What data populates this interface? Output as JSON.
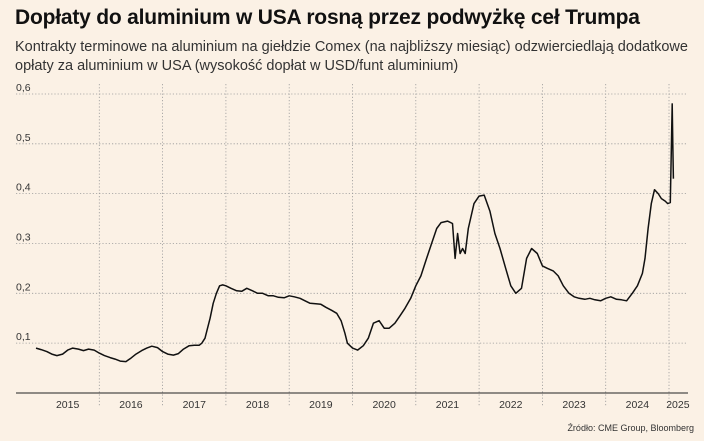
{
  "header": {
    "title": "Dopłaty do aluminium w USA rosną przez podwyżkę ceł Trumpa",
    "subtitle": "Kontrakty terminowe na aluminium na giełdzie Comex (na najbliższy miesiąc) odzwierciedlają dodatkowe opłaty za aluminium w USA (wysokość dopłat w USD/funt aluminium)"
  },
  "footer": {
    "source": "Źródło: CME Group, Bloomberg"
  },
  "colors": {
    "background": "#fbf1e5",
    "line": "#111111",
    "grid": "#9a9a9a"
  },
  "chart_data": {
    "type": "line",
    "title": "Dopłaty do aluminium w USA rosną przez podwyżkę ceł Trumpa",
    "xlabel": "",
    "ylabel": "",
    "ylim": [
      0,
      0.62
    ],
    "xlim": [
      2015.0,
      2025.3
    ],
    "grid": "horizontal dotted",
    "legend": "none",
    "y_ticks": [
      {
        "value": 0.1,
        "label": "0,1"
      },
      {
        "value": 0.2,
        "label": "0,2"
      },
      {
        "value": 0.3,
        "label": "0,3"
      },
      {
        "value": 0.4,
        "label": "0,4"
      },
      {
        "value": 0.5,
        "label": "0,5"
      },
      {
        "value": 0.6,
        "label": "0,6"
      }
    ],
    "x_ticks": [
      "2015",
      "2016",
      "2017",
      "2018",
      "2019",
      "2020",
      "2021",
      "2022",
      "2023",
      "2024",
      "2025"
    ],
    "series": [
      {
        "points": [
          [
            2015.0,
            0.09
          ],
          [
            2015.08,
            0.087
          ],
          [
            2015.17,
            0.083
          ],
          [
            2015.25,
            0.078
          ],
          [
            2015.33,
            0.075
          ],
          [
            2015.42,
            0.078
          ],
          [
            2015.5,
            0.086
          ],
          [
            2015.58,
            0.09
          ],
          [
            2015.67,
            0.088
          ],
          [
            2015.75,
            0.085
          ],
          [
            2015.83,
            0.088
          ],
          [
            2015.92,
            0.086
          ],
          [
            2016.0,
            0.08
          ],
          [
            2016.08,
            0.075
          ],
          [
            2016.17,
            0.071
          ],
          [
            2016.25,
            0.068
          ],
          [
            2016.33,
            0.064
          ],
          [
            2016.42,
            0.063
          ],
          [
            2016.5,
            0.07
          ],
          [
            2016.58,
            0.078
          ],
          [
            2016.67,
            0.085
          ],
          [
            2016.75,
            0.09
          ],
          [
            2016.83,
            0.094
          ],
          [
            2016.92,
            0.091
          ],
          [
            2017.0,
            0.083
          ],
          [
            2017.08,
            0.078
          ],
          [
            2017.17,
            0.076
          ],
          [
            2017.25,
            0.079
          ],
          [
            2017.33,
            0.088
          ],
          [
            2017.42,
            0.095
          ],
          [
            2017.5,
            0.096
          ],
          [
            2017.58,
            0.096
          ],
          [
            2017.62,
            0.1
          ],
          [
            2017.67,
            0.11
          ],
          [
            2017.7,
            0.125
          ],
          [
            2017.75,
            0.15
          ],
          [
            2017.8,
            0.18
          ],
          [
            2017.85,
            0.2
          ],
          [
            2017.9,
            0.215
          ],
          [
            2017.95,
            0.217
          ],
          [
            2018.0,
            0.215
          ],
          [
            2018.08,
            0.21
          ],
          [
            2018.17,
            0.205
          ],
          [
            2018.25,
            0.204
          ],
          [
            2018.33,
            0.21
          ],
          [
            2018.42,
            0.205
          ],
          [
            2018.5,
            0.2
          ],
          [
            2018.58,
            0.2
          ],
          [
            2018.67,
            0.195
          ],
          [
            2018.75,
            0.195
          ],
          [
            2018.83,
            0.192
          ],
          [
            2018.92,
            0.191
          ],
          [
            2019.0,
            0.195
          ],
          [
            2019.08,
            0.193
          ],
          [
            2019.17,
            0.19
          ],
          [
            2019.25,
            0.185
          ],
          [
            2019.33,
            0.18
          ],
          [
            2019.42,
            0.179
          ],
          [
            2019.5,
            0.178
          ],
          [
            2019.58,
            0.172
          ],
          [
            2019.67,
            0.166
          ],
          [
            2019.75,
            0.16
          ],
          [
            2019.82,
            0.145
          ],
          [
            2019.88,
            0.12
          ],
          [
            2019.92,
            0.1
          ],
          [
            2020.0,
            0.09
          ],
          [
            2020.08,
            0.086
          ],
          [
            2020.17,
            0.095
          ],
          [
            2020.25,
            0.11
          ],
          [
            2020.33,
            0.14
          ],
          [
            2020.42,
            0.145
          ],
          [
            2020.5,
            0.13
          ],
          [
            2020.58,
            0.13
          ],
          [
            2020.67,
            0.14
          ],
          [
            2020.75,
            0.155
          ],
          [
            2020.83,
            0.17
          ],
          [
            2020.92,
            0.19
          ],
          [
            2021.0,
            0.215
          ],
          [
            2021.08,
            0.235
          ],
          [
            2021.17,
            0.27
          ],
          [
            2021.25,
            0.3
          ],
          [
            2021.33,
            0.33
          ],
          [
            2021.4,
            0.342
          ],
          [
            2021.5,
            0.345
          ],
          [
            2021.58,
            0.34
          ],
          [
            2021.62,
            0.27
          ],
          [
            2021.66,
            0.32
          ],
          [
            2021.7,
            0.28
          ],
          [
            2021.74,
            0.29
          ],
          [
            2021.78,
            0.28
          ],
          [
            2021.83,
            0.33
          ],
          [
            2021.92,
            0.38
          ],
          [
            2022.0,
            0.395
          ],
          [
            2022.08,
            0.397
          ],
          [
            2022.17,
            0.365
          ],
          [
            2022.25,
            0.32
          ],
          [
            2022.33,
            0.29
          ],
          [
            2022.42,
            0.25
          ],
          [
            2022.5,
            0.215
          ],
          [
            2022.58,
            0.2
          ],
          [
            2022.67,
            0.21
          ],
          [
            2022.75,
            0.27
          ],
          [
            2022.83,
            0.29
          ],
          [
            2022.92,
            0.28
          ],
          [
            2023.0,
            0.255
          ],
          [
            2023.08,
            0.25
          ],
          [
            2023.17,
            0.245
          ],
          [
            2023.25,
            0.235
          ],
          [
            2023.33,
            0.215
          ],
          [
            2023.42,
            0.2
          ],
          [
            2023.5,
            0.193
          ],
          [
            2023.58,
            0.19
          ],
          [
            2023.67,
            0.188
          ],
          [
            2023.75,
            0.19
          ],
          [
            2023.83,
            0.187
          ],
          [
            2023.92,
            0.185
          ],
          [
            2024.0,
            0.19
          ],
          [
            2024.08,
            0.193
          ],
          [
            2024.17,
            0.188
          ],
          [
            2024.25,
            0.187
          ],
          [
            2024.33,
            0.185
          ],
          [
            2024.42,
            0.2
          ],
          [
            2024.5,
            0.215
          ],
          [
            2024.58,
            0.24
          ],
          [
            2024.62,
            0.27
          ],
          [
            2024.67,
            0.33
          ],
          [
            2024.72,
            0.38
          ],
          [
            2024.77,
            0.408
          ],
          [
            2024.83,
            0.4
          ],
          [
            2024.88,
            0.39
          ],
          [
            2024.94,
            0.385
          ],
          [
            2024.98,
            0.38
          ],
          [
            2025.02,
            0.382
          ],
          [
            2025.05,
            0.58
          ],
          [
            2025.06,
            0.5
          ],
          [
            2025.07,
            0.43
          ]
        ]
      }
    ]
  }
}
